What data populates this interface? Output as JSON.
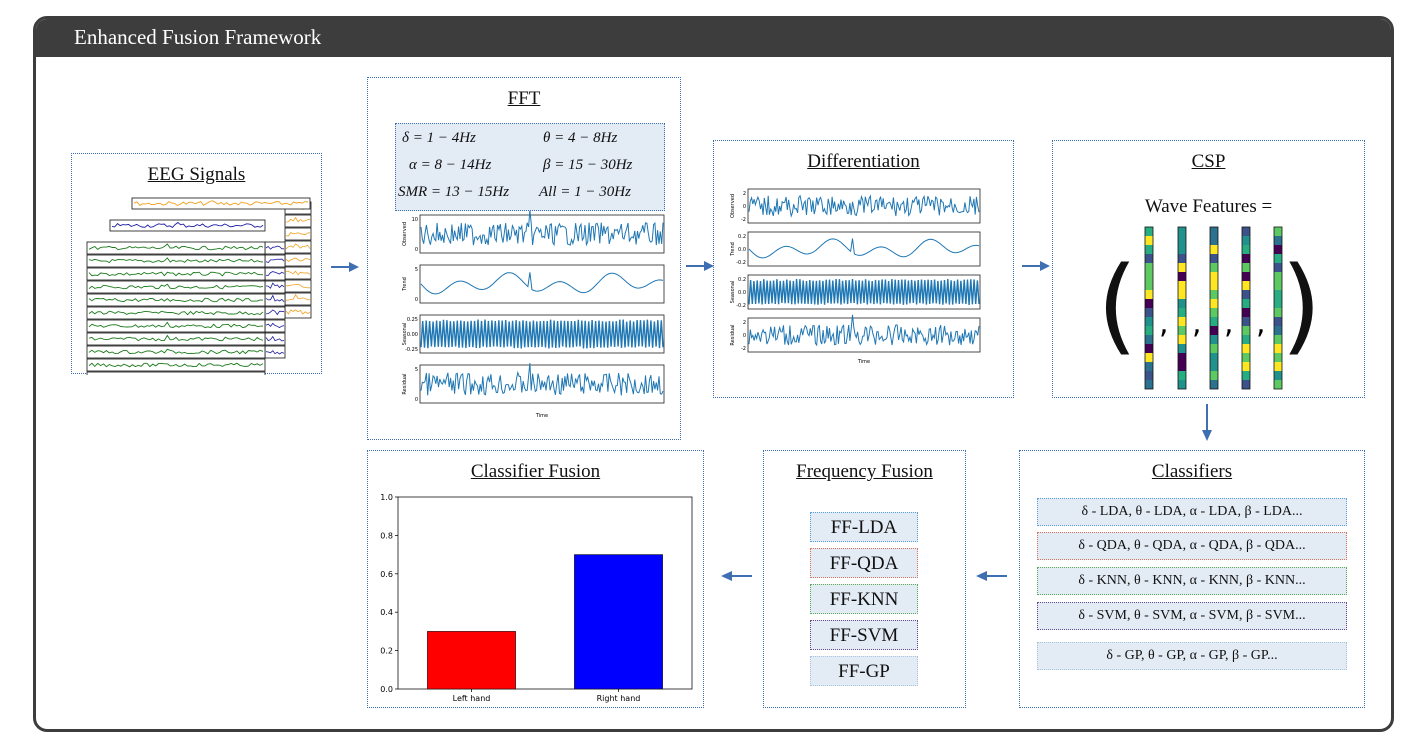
{
  "header": {
    "title": "Enhanced Fusion Framework"
  },
  "eeg": {
    "title": "EEG Signals"
  },
  "fft": {
    "title": "FFT",
    "bands": [
      "δ = 1 − 4Hz",
      "θ = 4 − 8Hz",
      "α = 8 − 14Hz",
      "β = 15 − 30Hz",
      "SMR = 13 − 15Hz",
      "All = 1 − 30Hz"
    ],
    "plot_labels": [
      "Observed",
      "Trend",
      "Seasonal",
      "Residual"
    ],
    "xlabel": "Time",
    "ticks": {
      "observed": [
        "10",
        "0"
      ],
      "trend": [
        "5",
        "0"
      ],
      "seasonal": [
        "0.25",
        "0.00",
        "-0.25"
      ],
      "residual": [
        "5",
        "0"
      ]
    }
  },
  "diff": {
    "title": "Differentiation",
    "plot_labels": [
      "Observed",
      "Trend",
      "Seasonal",
      "Residual"
    ],
    "xlabel": "Time",
    "ticks": {
      "observed": [
        "2",
        "0",
        "-2"
      ],
      "trend": [
        "0.2",
        "0.0",
        "-0.2"
      ],
      "seasonal": [
        "0.2",
        "0.0",
        "-0.2"
      ],
      "residual": [
        "2",
        "0",
        "-2"
      ]
    }
  },
  "csp": {
    "title": "CSP",
    "formula": "Wave Features ="
  },
  "classifiers": {
    "title": "Classifiers",
    "rows": [
      "δ - LDA, θ - LDA, α - LDA, β - LDA...",
      "δ - QDA, θ - QDA, α - QDA, β - QDA...",
      "δ - KNN, θ - KNN, α - KNN, β - KNN...",
      "δ - SVM, θ - SVM, α - SVM, β - SVM...",
      "δ - GP, θ - GP, α - GP, β - GP..."
    ],
    "border_colors": [
      "#5aa0d8",
      "#d9735f",
      "#5aa85a",
      "#6a4a8a",
      "#a8c4e0"
    ]
  },
  "freq_fusion": {
    "title": "Frequency Fusion",
    "items": [
      "FF-LDA",
      "FF-QDA",
      "FF-KNN",
      "FF-SVM",
      "FF-GP"
    ]
  },
  "classifier_fusion": {
    "title": "Classifier Fusion"
  },
  "chart_data": {
    "type": "bar",
    "categories": [
      "Left hand",
      "Right hand"
    ],
    "values": [
      0.3,
      0.7
    ],
    "colors": [
      "#ff0000",
      "#0000ff"
    ],
    "ylim": [
      0,
      1.0
    ],
    "yticks": [
      "0.0",
      "0.2",
      "0.4",
      "0.6",
      "0.8",
      "1.0"
    ]
  },
  "colors": {
    "header": "#3d3d3d",
    "panel_border": "#3f6fb3",
    "arrow": "#3f6fb3",
    "signal": "#1f77b4"
  }
}
